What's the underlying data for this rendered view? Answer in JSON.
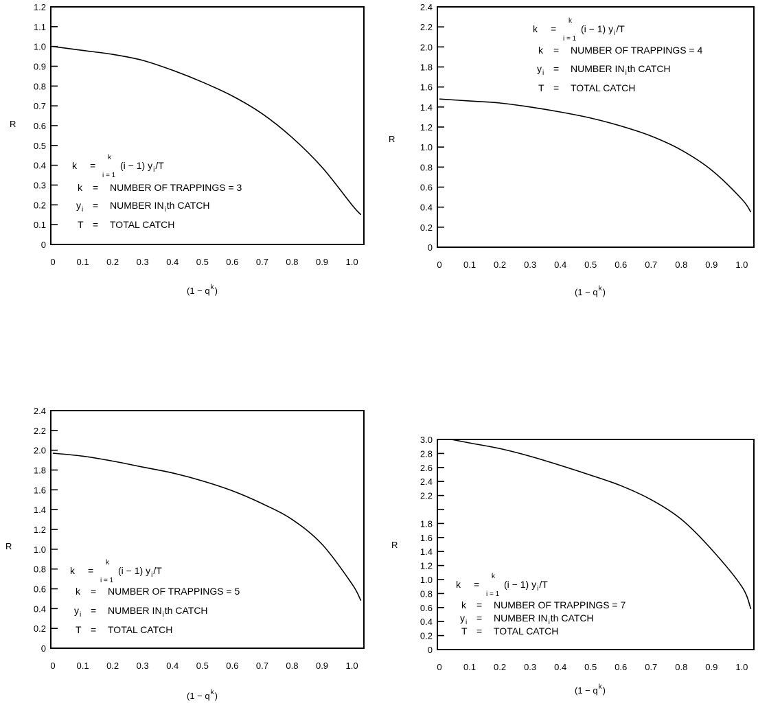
{
  "chart_data": [
    {
      "type": "line",
      "ylabel": "R",
      "xlabel": {
        "main": "(1 − q",
        "sup": "k",
        "close": ")"
      },
      "xlim": [
        0,
        1.04
      ],
      "ylim": [
        0,
        1.2
      ],
      "xticks": [
        0,
        0.1,
        0.2,
        0.3,
        0.4,
        0.5,
        0.6,
        0.7,
        0.8,
        0.9,
        1.0
      ],
      "xtick_labels": [
        "0",
        "0.1",
        "0.2",
        "0.3",
        "0.4",
        "0.5",
        "0.6",
        "0.7",
        "0.8",
        "0.9",
        "1.0"
      ],
      "yticks": [
        0,
        0.1,
        0.2,
        0.3,
        0.4,
        0.5,
        0.6,
        0.7,
        0.8,
        0.9,
        1.0,
        1.1,
        1.2
      ],
      "ytick_labels": [
        "0",
        "0.1",
        "0.2",
        "0.3",
        "0.4",
        "0.5",
        "0.6",
        "0.7",
        "0.8",
        "0.9",
        "1.0",
        "1.1",
        "1.2"
      ],
      "series": [
        {
          "name": "R",
          "x": [
            0,
            0.1,
            0.2,
            0.3,
            0.4,
            0.5,
            0.6,
            0.7,
            0.8,
            0.9,
            1.0,
            1.03
          ],
          "y": [
            1.0,
            0.98,
            0.96,
            0.93,
            0.88,
            0.82,
            0.75,
            0.66,
            0.54,
            0.39,
            0.2,
            0.15
          ]
        }
      ],
      "legend": {
        "formula": {
          "lhs": "k",
          "eq": "=",
          "upper": "k",
          "lower": "i = 1",
          "body": "(i − 1) y",
          "sub": "i",
          "tail": "/T"
        },
        "line_k": {
          "sym": "k",
          "eq": "=",
          "text": "NUMBER OF TRAPPINGS  =  3"
        },
        "line_y": {
          "sym": "y",
          "sub": "i",
          "eq": "=",
          "text1": "NUMBER IN ",
          "sub2": "i",
          "text2": "th CATCH"
        },
        "line_t": {
          "sym": "T",
          "eq": "=",
          "text": "TOTAL CATCH"
        }
      }
    },
    {
      "type": "line",
      "ylabel": "R",
      "xlabel": {
        "main": "(1 − q",
        "sup": "k",
        "close": ")"
      },
      "xlim": [
        0,
        1.04
      ],
      "ylim": [
        0,
        2.4
      ],
      "xticks": [
        0,
        0.1,
        0.2,
        0.3,
        0.4,
        0.5,
        0.6,
        0.7,
        0.8,
        0.9,
        1.0
      ],
      "xtick_labels": [
        "0",
        "0.1",
        "0.2",
        "0.3",
        "0.4",
        "0.5",
        "0.6",
        "0.7",
        "0.8",
        "0.9",
        "1.0"
      ],
      "yticks": [
        0,
        0.2,
        0.4,
        0.6,
        0.8,
        1.0,
        1.2,
        1.4,
        1.6,
        1.8,
        2.0,
        2.2,
        2.4
      ],
      "ytick_labels": [
        "0",
        "0.2",
        "0.4",
        "0.6",
        "0.8",
        "1.0",
        "1.2",
        "1.4",
        "1.6",
        "1.8",
        "2.0",
        "2.2",
        "2.4"
      ],
      "series": [
        {
          "name": "R",
          "x": [
            0,
            0.1,
            0.2,
            0.3,
            0.4,
            0.5,
            0.6,
            0.7,
            0.8,
            0.9,
            1.0,
            1.03
          ],
          "y": [
            1.48,
            1.46,
            1.44,
            1.4,
            1.35,
            1.29,
            1.21,
            1.11,
            0.97,
            0.77,
            0.48,
            0.35
          ]
        }
      ],
      "legend": {
        "formula": {
          "lhs": "k",
          "eq": "=",
          "upper": "k",
          "lower": "i = 1",
          "body": "(i − 1) y",
          "sub": "i",
          "tail": "/T"
        },
        "line_k": {
          "sym": "k",
          "eq": "=",
          "text": "NUMBER OF TRAPPINGS  =  4"
        },
        "line_y": {
          "sym": "y",
          "sub": "i",
          "eq": "=",
          "text1": "NUMBER IN ",
          "sub2": "i",
          "text2": "th CATCH"
        },
        "line_t": {
          "sym": "T",
          "eq": "=",
          "text": "TOTAL CATCH"
        }
      }
    },
    {
      "type": "line",
      "ylabel": "R",
      "xlabel": {
        "main": "(1 − q",
        "sup": "k",
        "close": ")"
      },
      "xlim": [
        0,
        1.04
      ],
      "ylim": [
        0,
        2.4
      ],
      "xticks": [
        0,
        0.1,
        0.2,
        0.3,
        0.4,
        0.5,
        0.6,
        0.7,
        0.8,
        0.9,
        1.0
      ],
      "xtick_labels": [
        "0",
        "0.1",
        "0.2",
        "0.3",
        "0.4",
        "0.5",
        "0.6",
        "0.7",
        "0.8",
        "0.9",
        "1.0"
      ],
      "yticks": [
        0,
        0.2,
        0.4,
        0.6,
        0.8,
        1.0,
        1.2,
        1.4,
        1.6,
        1.8,
        2.0,
        2.2,
        2.4
      ],
      "ytick_labels": [
        "0",
        "0.2",
        "0.4",
        "0.6",
        "0.8",
        "1.0",
        "1.2",
        "1.4",
        "1.6",
        "1.8",
        "2.0",
        "2.2",
        "2.4"
      ],
      "series": [
        {
          "name": "R",
          "x": [
            0,
            0.1,
            0.2,
            0.3,
            0.4,
            0.5,
            0.6,
            0.7,
            0.8,
            0.9,
            1.0,
            1.03
          ],
          "y": [
            1.97,
            1.94,
            1.89,
            1.83,
            1.77,
            1.69,
            1.59,
            1.46,
            1.3,
            1.05,
            0.65,
            0.48
          ]
        }
      ],
      "legend": {
        "formula": {
          "lhs": "k",
          "eq": "=",
          "upper": "k",
          "lower": "i = 1",
          "body": "(i − 1) y",
          "sub": "i",
          "tail": "/T"
        },
        "line_k": {
          "sym": "k",
          "eq": "=",
          "text": "NUMBER OF TRAPPINGS  =  5"
        },
        "line_y": {
          "sym": "y",
          "sub": "i",
          "eq": "=",
          "text1": "NUMBER IN ",
          "sub2": "i",
          "text2": "th CATCH"
        },
        "line_t": {
          "sym": "T",
          "eq": "=",
          "text": "TOTAL CATCH"
        }
      }
    },
    {
      "type": "line",
      "ylabel": "R",
      "xlabel": {
        "main": "(1 − q",
        "sup": "k",
        "close": ")"
      },
      "xlim": [
        0,
        1.04
      ],
      "ylim": [
        0,
        3.0
      ],
      "xticks": [
        0,
        0.1,
        0.2,
        0.3,
        0.4,
        0.5,
        0.6,
        0.7,
        0.8,
        0.9,
        1.0
      ],
      "xtick_labels": [
        "0",
        "0.1",
        "0.2",
        "0.3",
        "0.4",
        "0.5",
        "0.6",
        "0.7",
        "0.8",
        "0.9",
        "1.0"
      ],
      "yticks": [
        0,
        0.2,
        0.4,
        0.6,
        0.8,
        1.0,
        1.2,
        1.4,
        1.6,
        1.8,
        2.0,
        2.2,
        2.4,
        2.6,
        2.8,
        3.0
      ],
      "ytick_labels": [
        "0",
        "0.2",
        "0.4",
        "0.6",
        "0.8",
        "1.0",
        "1.2",
        "1.4",
        "1.6",
        "1.8",
        "",
        "2.2",
        "2.4",
        "2.6",
        "2.8",
        "3.0"
      ],
      "series": [
        {
          "name": "R",
          "x": [
            0.04,
            0.1,
            0.2,
            0.3,
            0.4,
            0.5,
            0.6,
            0.7,
            0.8,
            0.9,
            1.0,
            1.03
          ],
          "y": [
            3.0,
            2.95,
            2.87,
            2.76,
            2.63,
            2.49,
            2.34,
            2.14,
            1.86,
            1.43,
            0.9,
            0.58
          ]
        }
      ],
      "legend": {
        "formula": {
          "lhs": "k",
          "eq": "=",
          "upper": "k",
          "lower": "i = 1",
          "body": "(i − 1) y",
          "sub": "i",
          "tail": "/T"
        },
        "line_k": {
          "sym": "k",
          "eq": "=",
          "text": "NUMBER OF TRAPPINGS  =  7"
        },
        "line_y": {
          "sym": "y",
          "sub": "i",
          "eq": "=",
          "text1": "NUMBER IN ",
          "sub2": "i",
          "text2": "th CATCH"
        },
        "line_t": {
          "sym": "T",
          "eq": "=",
          "text": "TOTAL CATCH"
        }
      }
    }
  ]
}
